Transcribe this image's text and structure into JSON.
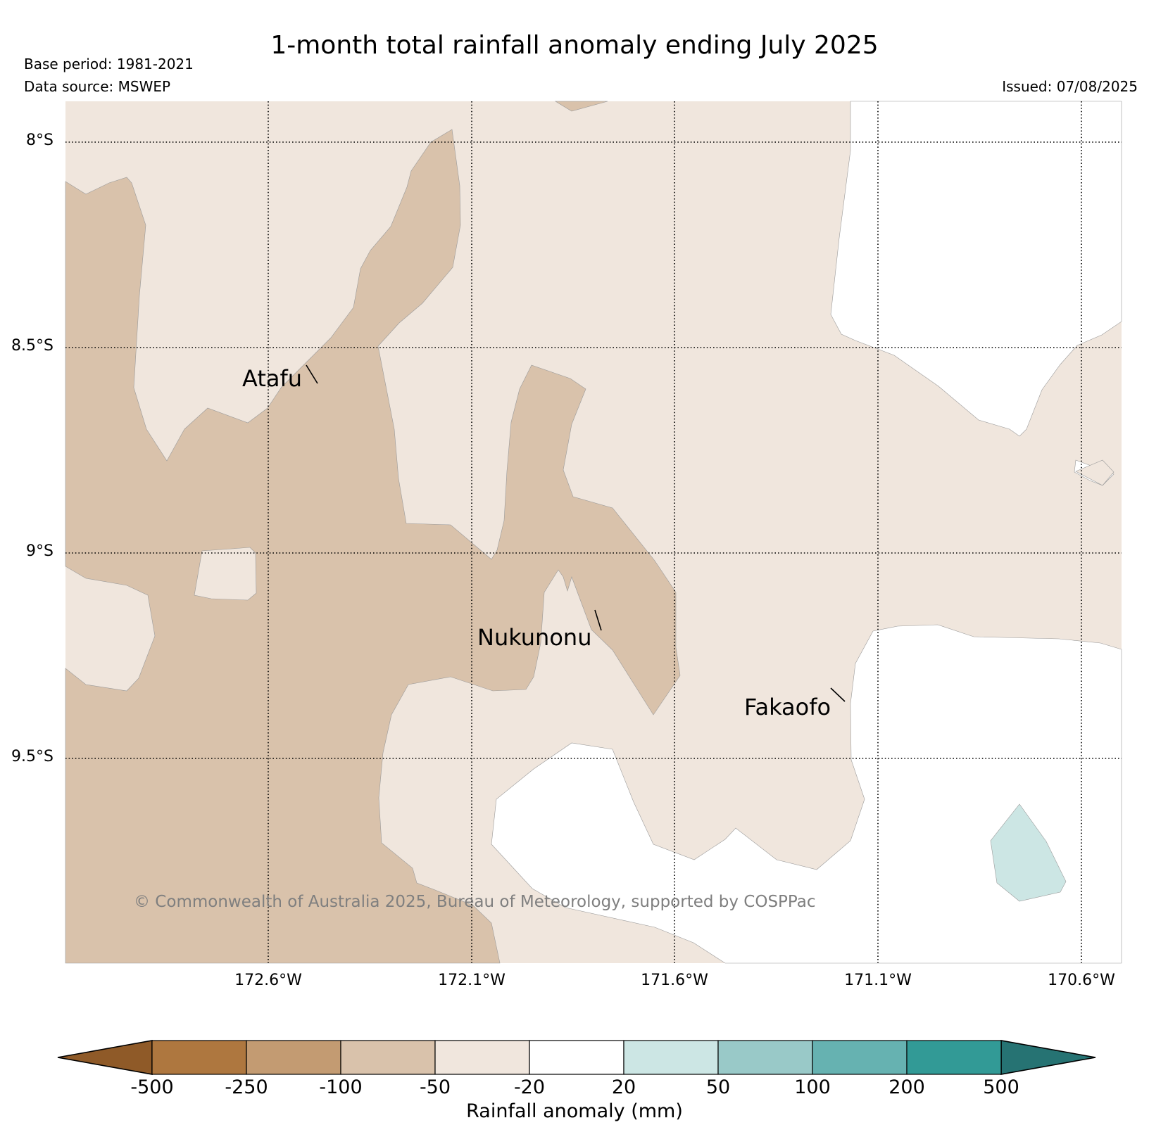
{
  "title": "1-month total rainfall anomaly ending July 2025",
  "base_period": "Base period: 1981-2021",
  "data_source": "Data source: MSWEP",
  "issued": "Issued: 07/08/2025",
  "copyright": "© Commonwealth of Australia 2025, Bureau of Meteorology, supported by COSPPac",
  "latitudes": [
    "8°S",
    "8.5°S",
    "9°S",
    "9.5°S"
  ],
  "longitudes": [
    "172.6°W",
    "172.1°W",
    "171.6°W",
    "171.1°W",
    "170.6°W"
  ],
  "places": [
    "Atafu",
    "Nukunonu",
    "Fakaofo"
  ],
  "colorbar": {
    "title": "Rainfall anomaly (mm)",
    "ticks": [
      "-500",
      "-250",
      "-100",
      "-50",
      "-20",
      "20",
      "50",
      "100",
      "200",
      "500"
    ],
    "extend_low_color": "#8f5a28",
    "extend_high_color": "#267373",
    "colors": [
      "#ae773f",
      "#c39b72",
      "#d9c2ab",
      "#f0e6dd",
      "#ffffff",
      "#cce6e4",
      "#99c9c8",
      "#66b2b1",
      "#329a96"
    ]
  },
  "map_colors": {
    "minus_100_to_minus_50": "#d9c2ab",
    "minus_50_to_minus_20": "#f0e6dd",
    "minus_20_to_20": "#ffffff",
    "plus_20_to_50": "#cce6e4"
  }
}
